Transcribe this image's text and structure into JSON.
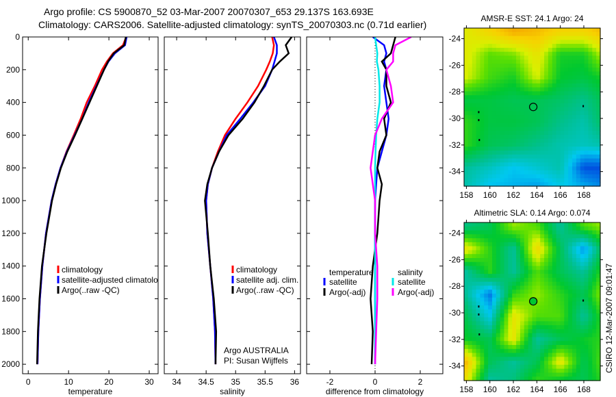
{
  "title_line1": "Argo profile: CS 5900870_52 03-Mar-2007 20070307_653 29.137S 163.693E",
  "title_line2": "Climatology: CARS2006. Satellite-adjusted climatology: synTS_20070303.nc (0.71d earlier)",
  "footer_stamp": "CSIRO 12-Mar-2007 09:01:47",
  "chart_data": [
    {
      "type": "line",
      "xlabel": "temperature",
      "ylabel": "",
      "xlim": [
        -1.4,
        32.2
      ],
      "ylim": [
        2058,
        0
      ],
      "xticks": [
        "0",
        "10",
        "20",
        "30"
      ],
      "xtick_values": [
        0,
        10,
        20,
        30
      ],
      "yticks": [
        "0",
        "200",
        "400",
        "600",
        "800",
        "1000",
        "1200",
        "1400",
        "1600",
        "1800",
        "2000"
      ],
      "ytick_values": [
        0,
        200,
        400,
        600,
        800,
        1000,
        1200,
        1400,
        1600,
        1800,
        2000
      ],
      "depth": [
        0,
        50,
        100,
        150,
        200,
        300,
        400,
        500,
        600,
        700,
        800,
        900,
        1000,
        1200,
        1400,
        1600,
        1800,
        2000
      ],
      "series": [
        {
          "name": "climatology",
          "color": "#ff0000",
          "values": [
            24.3,
            23.5,
            21,
            19.5,
            18.3,
            16.5,
            14.5,
            13,
            11.3,
            9.5,
            8,
            6.8,
            5.8,
            4.4,
            3.5,
            2.9,
            2.5,
            2.3
          ]
        },
        {
          "name": "satellite-adjusted climatology",
          "color": "#0000ff",
          "values": [
            24.4,
            24,
            21.5,
            19.9,
            18.8,
            16.9,
            15,
            13.4,
            11.5,
            9.6,
            8,
            6.8,
            5.8,
            4.4,
            3.5,
            2.9,
            2.5,
            2.3
          ]
        },
        {
          "name": "Argo(..raw -QC)",
          "color": "#000000",
          "values": [
            24.2,
            23.8,
            21.2,
            19.8,
            18.8,
            17,
            15.2,
            13.4,
            11.6,
            9.7,
            8.1,
            6.9,
            5.9,
            4.5,
            3.4,
            2.8,
            2.4,
            2.2
          ]
        }
      ]
    },
    {
      "type": "line",
      "xlabel": "salinity",
      "xlim": [
        33.79,
        36.1
      ],
      "ylim": [
        2058,
        0
      ],
      "xticks": [
        "34",
        "34.5",
        "35",
        "35.5",
        "36"
      ],
      "xtick_values": [
        34,
        34.5,
        35,
        35.5,
        36
      ],
      "depth": [
        0,
        50,
        100,
        150,
        200,
        300,
        400,
        500,
        600,
        700,
        800,
        900,
        1000,
        1200,
        1400,
        1600,
        1800,
        2000
      ],
      "series": [
        {
          "name": "climatology",
          "color": "#ff0000",
          "values": [
            35.62,
            35.65,
            35.63,
            35.58,
            35.52,
            35.38,
            35.2,
            35.0,
            34.82,
            34.7,
            34.6,
            34.53,
            34.5,
            34.52,
            34.57,
            34.62,
            34.65,
            34.66
          ]
        },
        {
          "name": "satellite adj. clim.",
          "color": "#0000ff",
          "values": [
            35.65,
            35.7,
            35.7,
            35.66,
            35.62,
            35.5,
            35.3,
            35.08,
            34.85,
            34.72,
            34.6,
            34.53,
            34.5,
            34.52,
            34.57,
            34.62,
            34.65,
            34.66
          ]
        },
        {
          "name": "Argo(..raw -QC)",
          "color": "#000000",
          "values": [
            35.95,
            35.85,
            35.9,
            35.75,
            35.62,
            35.48,
            35.32,
            35.12,
            34.88,
            34.72,
            34.6,
            34.52,
            34.48,
            34.53,
            34.57,
            34.63,
            34.67,
            34.66
          ]
        }
      ],
      "annotations": [
        "Argo AUSTRALIA",
        "PI: Susan Wijffels"
      ]
    },
    {
      "type": "line",
      "xlabel": "difference from climatology",
      "xlim": [
        -3.03,
        3.0
      ],
      "ylim": [
        2058,
        0
      ],
      "xticks": [
        "-2",
        "0",
        "2"
      ],
      "xtick_values": [
        -2,
        0,
        2
      ],
      "depth": [
        0,
        50,
        100,
        150,
        200,
        300,
        400,
        500,
        600,
        700,
        800,
        900,
        1000,
        1200,
        1400,
        1600,
        1800,
        2000
      ],
      "legend_headers": [
        "temperature",
        "salinity"
      ],
      "series": [
        {
          "name": "satellite",
          "group": "temperature",
          "color": "#0000ff",
          "values": [
            -0.1,
            0.4,
            0.5,
            0.4,
            0.5,
            0.4,
            0.5,
            0.6,
            0.5,
            0.3,
            0.1,
            0.05,
            0.0,
            0.0,
            0.0,
            0.0,
            0.0,
            0.0
          ]
        },
        {
          "name": "Argo(-adj)",
          "group": "temperature",
          "color": "#000000",
          "values": [
            0.9,
            0.8,
            0.7,
            0.3,
            0.5,
            0.5,
            0.7,
            0.4,
            0.5,
            0.2,
            0.1,
            0.3,
            0.2,
            0.1,
            -0.1,
            -0.2,
            -0.1,
            -0.15
          ]
        },
        {
          "name": "satellite",
          "group": "salinity",
          "color": "#00e8e8",
          "values": [
            0.0,
            0.05,
            0.1,
            0.08,
            0.15,
            0.2,
            0.2,
            0.1,
            0.05,
            0.02,
            0.0,
            0.0,
            0.0,
            0.0,
            0.0,
            0.0,
            0.0,
            0.0
          ]
        },
        {
          "name": "Argo(-adj)",
          "group": "salinity",
          "color": "#ff00ff",
          "values": [
            1.6,
            0.9,
            0.8,
            0.8,
            0.5,
            0.7,
            0.8,
            0.3,
            0.0,
            -0.1,
            -0.2,
            -0.1,
            0.0,
            0.0,
            0.1,
            0.1,
            0.05,
            0.0
          ]
        }
      ]
    },
    {
      "type": "heatmap",
      "title": "AMSR-E SST: 24.1 Argo: 24",
      "xlim": [
        157.8,
        169.4
      ],
      "ylim": [
        -23.2,
        -35.1
      ],
      "xticks": [
        "158",
        "160",
        "162",
        "164",
        "166",
        "168"
      ],
      "xtick_values": [
        158,
        160,
        162,
        164,
        166,
        168
      ],
      "yticks": [
        "-24",
        "-26",
        "-28",
        "-30",
        "-32",
        "-34"
      ],
      "ytick_values": [
        -24,
        -26,
        -28,
        -30,
        -32,
        -34
      ],
      "grid_lon": [
        158,
        160,
        162,
        164,
        166,
        168,
        169.5
      ],
      "grid_lat": [
        -23.5,
        -25.2,
        -26.9,
        -28.6,
        -30.3,
        -32,
        -33.7,
        -35
      ],
      "color_range": [
        22.3,
        25.9
      ],
      "values": [
        [
          25.0,
          25.3,
          25.6,
          25.5,
          25.3,
          25.3,
          25.5
        ],
        [
          25.0,
          24.5,
          24.6,
          25.1,
          24.2,
          24.2,
          24.8
        ],
        [
          24.9,
          24.4,
          24.2,
          24.9,
          24.1,
          24.0,
          24.2
        ],
        [
          24.0,
          24.0,
          23.9,
          23.9,
          23.8,
          23.6,
          23.9
        ],
        [
          24.3,
          24.0,
          24.0,
          23.9,
          23.6,
          23.4,
          23.8
        ],
        [
          24.3,
          23.9,
          23.8,
          23.6,
          23.4,
          23.3,
          23.4
        ],
        [
          23.5,
          23.3,
          23.0,
          23.2,
          23.4,
          22.3,
          22.3
        ],
        [
          23.4,
          23.0,
          22.9,
          22.8,
          23.1,
          22.8,
          22.6
        ]
      ],
      "argo_position": [
        163.693,
        -29.137
      ],
      "argo_value": 24
    },
    {
      "type": "heatmap",
      "title": "Altimetric SLA: 0.14 Argo: 0.074",
      "xlim": [
        157.8,
        169.4
      ],
      "ylim": [
        -23.2,
        -35.1
      ],
      "xticks": [
        "158",
        "160",
        "162",
        "164",
        "166",
        "168"
      ],
      "xtick_values": [
        158,
        160,
        162,
        164,
        166,
        168
      ],
      "yticks": [
        "-24",
        "-26",
        "-28",
        "-30",
        "-32",
        "-34"
      ],
      "ytick_values": [
        -24,
        -26,
        -28,
        -30,
        -32,
        -34
      ],
      "grid_lon": [
        158,
        160,
        162,
        164,
        166,
        168,
        169.5
      ],
      "grid_lat": [
        -23.5,
        -25.2,
        -26.9,
        -28.6,
        -30.3,
        -32,
        -33.7,
        -35
      ],
      "color_range": [
        -0.15,
        0.3
      ],
      "values": [
        [
          0.02,
          0.05,
          0.15,
          0.12,
          0.0,
          0.12,
          0.15
        ],
        [
          0.2,
          0.1,
          0.0,
          0.22,
          0.05,
          -0.1,
          0.05
        ],
        [
          0.0,
          0.1,
          0.0,
          0.12,
          0.05,
          0.0,
          0.1
        ],
        [
          0.0,
          -0.12,
          0.1,
          0.15,
          0.1,
          0.05,
          0.15
        ],
        [
          0.05,
          -0.05,
          0.2,
          0.12,
          0.12,
          0.0,
          0.1
        ],
        [
          0.08,
          0.05,
          0.2,
          0.0,
          0.05,
          0.08,
          0.1
        ],
        [
          0.25,
          0.05,
          0.0,
          0.05,
          0.2,
          0.05,
          0.12
        ],
        [
          0.2,
          0.0,
          0.02,
          0.1,
          0.08,
          0.05,
          0.1
        ]
      ],
      "argo_position": [
        163.693,
        -29.137
      ],
      "argo_value": 0.074
    }
  ]
}
